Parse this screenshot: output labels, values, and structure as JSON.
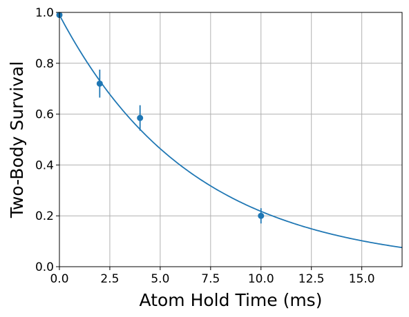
{
  "chart_data": {
    "type": "scatter",
    "title": "",
    "xlabel": "Atom Hold Time (ms)",
    "ylabel": "Two-Body Survival",
    "xlim": [
      0,
      17
    ],
    "ylim": [
      0,
      1.0
    ],
    "grid": true,
    "legend": "none",
    "color": "#1f77b4",
    "x_ticks": [
      0.0,
      2.5,
      5.0,
      7.5,
      10.0,
      12.5,
      15.0
    ],
    "x_tick_labels": [
      "0.0",
      "2.5",
      "5.0",
      "7.5",
      "10.0",
      "12.5",
      "15.0"
    ],
    "y_ticks": [
      0.0,
      0.2,
      0.4,
      0.6,
      0.8,
      1.0
    ],
    "y_tick_labels": [
      "0.0",
      "0.2",
      "0.4",
      "0.6",
      "0.8",
      "1.0"
    ],
    "series": [
      {
        "kind": "errorbar_points",
        "x": [
          0,
          2,
          4,
          10
        ],
        "y": [
          0.99,
          0.72,
          0.585,
          0.2
        ],
        "yerr": [
          0.01,
          0.055,
          0.05,
          0.03
        ]
      },
      {
        "kind": "fit_line",
        "model": "exponential decay",
        "amplitude": 0.99,
        "tau_ms": 6.6
      }
    ]
  }
}
